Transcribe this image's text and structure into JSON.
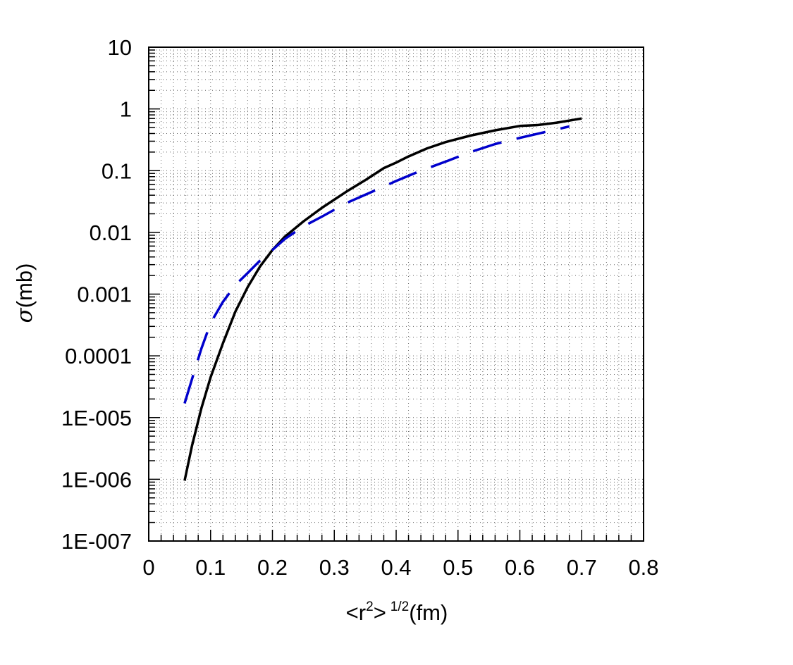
{
  "chart_data": {
    "type": "line",
    "title": "",
    "xlabel": {
      "prefix": "<r",
      "sup1": "2",
      "mid": ">",
      "sup2": "1/2",
      "suffix": "(fm)"
    },
    "ylabel": {
      "symbol": "σ",
      "suffix": "(mb)"
    },
    "xlim": [
      0,
      0.8
    ],
    "ylim": [
      1e-07,
      10
    ],
    "yscale": "log",
    "grid": true,
    "grid_style": "dotted",
    "x_ticks": [
      "0",
      "0.1",
      "0.2",
      "0.3",
      "0.4",
      "0.5",
      "0.6",
      "0.7",
      "0.8"
    ],
    "y_ticks": [
      "1E-007",
      "1E-006",
      "1E-005",
      "0.0001",
      "0.001",
      "0.01",
      "0.1",
      "1",
      "10"
    ],
    "series": [
      {
        "style": "solid",
        "color": "#000000",
        "x": [
          0.058,
          0.07,
          0.085,
          0.1,
          0.12,
          0.14,
          0.16,
          0.18,
          0.2,
          0.22,
          0.25,
          0.28,
          0.32,
          0.35,
          0.38,
          0.4,
          0.42,
          0.45,
          0.48,
          0.52,
          0.56,
          0.6,
          0.63,
          0.66,
          0.7
        ],
        "y": [
          9.5e-07,
          3.5e-06,
          1.4e-05,
          4.5e-05,
          0.00016,
          0.00052,
          0.0013,
          0.0028,
          0.0052,
          0.0085,
          0.015,
          0.025,
          0.046,
          0.07,
          0.11,
          0.135,
          0.17,
          0.23,
          0.29,
          0.37,
          0.45,
          0.53,
          0.55,
          0.6,
          0.7
        ]
      },
      {
        "style": "dashed",
        "color": "#0000cc",
        "x": [
          0.058,
          0.07,
          0.085,
          0.1,
          0.12,
          0.14,
          0.16,
          0.18,
          0.2,
          0.22,
          0.25,
          0.28,
          0.32,
          0.36,
          0.4,
          0.44,
          0.48,
          0.52,
          0.56,
          0.6,
          0.64,
          0.68
        ],
        "y": [
          1.7e-05,
          4.2e-05,
          0.00013,
          0.00034,
          0.00075,
          0.0014,
          0.0022,
          0.0035,
          0.0052,
          0.0078,
          0.0125,
          0.018,
          0.03,
          0.045,
          0.068,
          0.1,
          0.14,
          0.2,
          0.27,
          0.34,
          0.42,
          0.52
        ]
      }
    ]
  }
}
